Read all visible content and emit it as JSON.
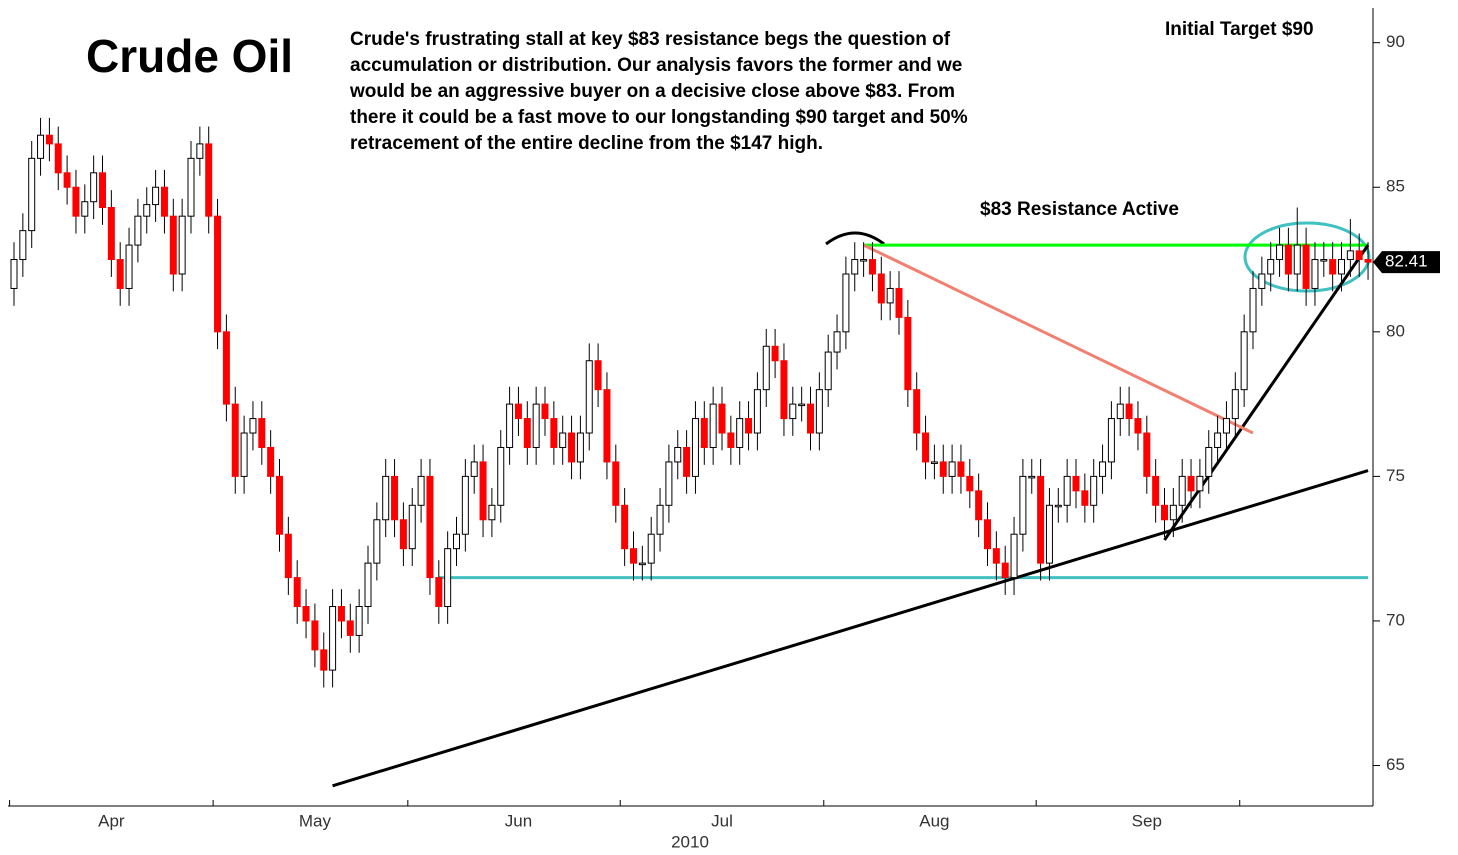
{
  "chart_data": {
    "type": "candlestick",
    "title": "Crude Oil",
    "commentary": [
      "Crude's frustrating stall at key $83 resistance begs the question of",
      "accumulation or distribution. Our analysis favors the former and we",
      "would be an aggressive buyer on a decisive close above $83. From",
      "there it could be a fast move to our longstanding $90 target and 50%",
      "retracement of the entire decline from the $147 high."
    ],
    "annotations": [
      "Initial Target $90",
      "$83 Resistance Active"
    ],
    "year_label": "2010",
    "up_color": "#ffffff",
    "down_color": "#ff0000",
    "ylim": [
      63.6,
      91.2
    ],
    "yticks": [
      65,
      70,
      75,
      80,
      85,
      90
    ],
    "last_value": 82.41,
    "xticks": [
      {
        "value": 11,
        "label": "Apr"
      },
      {
        "value": 34,
        "label": "May"
      },
      {
        "value": 57,
        "label": "Jun"
      },
      {
        "value": 80,
        "label": "Jul"
      },
      {
        "value": 104,
        "label": "Aug"
      },
      {
        "value": 128,
        "label": "Sep"
      }
    ],
    "month_boundaries": [
      0,
      23,
      45,
      69,
      92,
      116,
      139
    ],
    "trendlines": [
      {
        "color": "#00ff00",
        "points": [
          [
            96,
            83
          ],
          [
            153,
            83
          ]
        ]
      },
      {
        "color": "#40c0c0",
        "points": [
          [
            48,
            71.5
          ],
          [
            153,
            71.5
          ]
        ]
      },
      {
        "color": "#000000",
        "points": [
          [
            36,
            64.3
          ],
          [
            153,
            75.2
          ]
        ]
      },
      {
        "color": "#000000",
        "points": [
          [
            130,
            72.8
          ],
          [
            153,
            83
          ]
        ]
      },
      {
        "color": "#f08070",
        "points": [
          [
            96,
            83
          ],
          [
            140,
            76.5
          ]
        ]
      }
    ],
    "ohlc": [
      [
        81.5,
        83.1,
        80.9,
        82.5
      ],
      [
        82.5,
        84.1,
        81.9,
        83.5
      ],
      [
        83.5,
        86.6,
        82.9,
        86
      ],
      [
        86,
        87.4,
        85.4,
        86.8
      ],
      [
        86.8,
        87.4,
        85.9,
        86.5
      ],
      [
        86.5,
        87.1,
        84.9,
        85.5
      ],
      [
        85.5,
        86.1,
        84.4,
        85
      ],
      [
        85,
        85.6,
        83.4,
        84
      ],
      [
        84,
        85.1,
        83.4,
        84.5
      ],
      [
        84.5,
        86.1,
        83.9,
        85.5
      ],
      [
        85.5,
        86.1,
        83.7,
        84.3
      ],
      [
        84.3,
        84.9,
        81.9,
        82.5
      ],
      [
        82.5,
        83.1,
        80.9,
        81.5
      ],
      [
        81.5,
        83.6,
        80.9,
        83
      ],
      [
        83,
        84.6,
        82.4,
        84
      ],
      [
        84,
        85,
        83.4,
        84.4
      ],
      [
        84.4,
        85.6,
        83.8,
        85
      ],
      [
        85,
        85.6,
        83.4,
        84
      ],
      [
        84,
        84.6,
        81.4,
        82
      ],
      [
        82,
        84.6,
        81.4,
        84
      ],
      [
        84,
        86.6,
        83.4,
        86
      ],
      [
        86,
        87.1,
        85.4,
        86.5
      ],
      [
        86.5,
        87.1,
        83.4,
        84
      ],
      [
        84,
        84.6,
        79.4,
        80
      ],
      [
        80,
        80.6,
        76.9,
        77.5
      ],
      [
        77.5,
        78.1,
        74.4,
        75
      ],
      [
        75,
        77.1,
        74.4,
        76.5
      ],
      [
        76.5,
        77.6,
        75.9,
        77
      ],
      [
        77,
        77.6,
        75.4,
        76
      ],
      [
        76,
        76.6,
        74.4,
        75
      ],
      [
        75,
        75.6,
        72.4,
        73
      ],
      [
        73,
        73.6,
        70.9,
        71.5
      ],
      [
        71.5,
        72.1,
        69.9,
        70.5
      ],
      [
        70.5,
        71.1,
        69.4,
        70
      ],
      [
        70,
        70.6,
        68.4,
        69
      ],
      [
        69,
        69.6,
        67.7,
        68.3
      ],
      [
        68.3,
        71.1,
        67.7,
        70.5
      ],
      [
        70.5,
        71.1,
        69.4,
        70
      ],
      [
        70,
        70.6,
        68.9,
        69.5
      ],
      [
        69.5,
        71.1,
        68.9,
        70.5
      ],
      [
        70.5,
        72.6,
        69.9,
        72
      ],
      [
        72,
        74.1,
        71.4,
        73.5
      ],
      [
        73.5,
        75.6,
        72.9,
        75
      ],
      [
        75,
        75.6,
        72.9,
        73.5
      ],
      [
        73.5,
        74.1,
        71.9,
        72.5
      ],
      [
        72.5,
        74.6,
        71.9,
        74
      ],
      [
        74,
        75.6,
        73.4,
        75
      ],
      [
        75,
        75.6,
        70.9,
        71.5
      ],
      [
        71.5,
        72.1,
        69.9,
        70.5
      ],
      [
        70.5,
        73.1,
        69.9,
        72.5
      ],
      [
        72.5,
        73.6,
        71.9,
        73
      ],
      [
        73,
        75.6,
        72.4,
        75
      ],
      [
        75,
        76.1,
        74.4,
        75.5
      ],
      [
        75.5,
        76.1,
        72.9,
        73.5
      ],
      [
        73.5,
        74.6,
        72.9,
        74
      ],
      [
        74,
        76.6,
        73.4,
        76
      ],
      [
        76,
        78.1,
        75.4,
        77.5
      ],
      [
        77.5,
        78.1,
        76.4,
        77
      ],
      [
        77,
        77.6,
        75.4,
        76
      ],
      [
        76,
        78.1,
        75.4,
        77.5
      ],
      [
        77.5,
        78.1,
        76.4,
        77
      ],
      [
        77,
        77.6,
        75.4,
        76
      ],
      [
        76,
        77.1,
        75.4,
        76.5
      ],
      [
        76.5,
        77.1,
        74.9,
        75.5
      ],
      [
        75.5,
        77.1,
        74.9,
        76.5
      ],
      [
        76.5,
        79.6,
        75.9,
        79
      ],
      [
        79,
        79.6,
        77.4,
        78
      ],
      [
        78,
        78.6,
        74.9,
        75.5
      ],
      [
        75.5,
        76.1,
        73.4,
        74
      ],
      [
        74,
        74.6,
        71.9,
        72.5
      ],
      [
        72.5,
        73.1,
        71.4,
        72
      ],
      [
        72,
        72.6,
        71.4,
        72
      ],
      [
        72,
        73.6,
        71.4,
        73
      ],
      [
        73,
        74.6,
        72.4,
        74
      ],
      [
        74,
        76.1,
        73.4,
        75.5
      ],
      [
        75.5,
        76.6,
        74.9,
        76
      ],
      [
        76,
        76.6,
        74.4,
        75
      ],
      [
        75,
        77.6,
        74.4,
        77
      ],
      [
        77,
        77.6,
        75.4,
        76
      ],
      [
        76,
        78.1,
        75.4,
        77.5
      ],
      [
        77.5,
        78.1,
        75.9,
        76.5
      ],
      [
        76.5,
        77.1,
        75.4,
        76
      ],
      [
        76,
        77.6,
        75.4,
        77
      ],
      [
        77,
        77.6,
        75.9,
        76.5
      ],
      [
        76.5,
        78.6,
        75.9,
        78
      ],
      [
        78,
        80.1,
        77.4,
        79.5
      ],
      [
        79.5,
        80.1,
        78.4,
        79
      ],
      [
        79,
        79.6,
        76.4,
        77
      ],
      [
        77,
        78.1,
        76.4,
        77.5
      ],
      [
        77.5,
        78.1,
        76.9,
        77.5
      ],
      [
        77.5,
        78.1,
        75.9,
        76.5
      ],
      [
        76.5,
        78.6,
        75.9,
        78
      ],
      [
        78,
        79.9,
        77.4,
        79.3
      ],
      [
        79.3,
        80.6,
        78.7,
        80
      ],
      [
        80,
        82.6,
        79.4,
        82
      ],
      [
        82,
        83.1,
        81.4,
        82.5
      ],
      [
        82.5,
        83.1,
        81.9,
        82.5
      ],
      [
        82.5,
        83.1,
        81.4,
        82
      ],
      [
        82,
        82.6,
        80.4,
        81
      ],
      [
        81,
        82.1,
        80.4,
        81.5
      ],
      [
        81.5,
        82.1,
        79.9,
        80.5
      ],
      [
        80.5,
        81.1,
        77.4,
        78
      ],
      [
        78,
        78.6,
        75.9,
        76.5
      ],
      [
        76.5,
        77.1,
        74.9,
        75.5
      ],
      [
        75.5,
        76.1,
        74.9,
        75.5
      ],
      [
        75.5,
        76.1,
        74.4,
        75
      ],
      [
        75,
        76.1,
        74.4,
        75.5
      ],
      [
        75.5,
        76.1,
        74.4,
        75
      ],
      [
        75,
        75.6,
        73.9,
        74.5
      ],
      [
        74.5,
        75.1,
        72.9,
        73.5
      ],
      [
        73.5,
        74.1,
        71.9,
        72.5
      ],
      [
        72.5,
        73.1,
        71.4,
        72
      ],
      [
        72,
        72.6,
        70.9,
        71.5
      ],
      [
        71.5,
        73.6,
        70.9,
        73
      ],
      [
        73,
        75.6,
        72.4,
        75
      ],
      [
        75,
        75.6,
        74.4,
        75
      ],
      [
        75,
        75.6,
        71.4,
        72
      ],
      [
        72,
        74.6,
        71.4,
        74
      ],
      [
        74,
        74.6,
        73.4,
        74
      ],
      [
        74,
        75.6,
        73.4,
        75
      ],
      [
        75,
        75.6,
        73.9,
        74.5
      ],
      [
        74.5,
        75.1,
        73.4,
        74
      ],
      [
        74,
        75.6,
        73.4,
        75
      ],
      [
        75,
        76.1,
        74.4,
        75.5
      ],
      [
        75.5,
        77.6,
        74.9,
        77
      ],
      [
        77,
        78.1,
        76.4,
        77.5
      ],
      [
        77.5,
        78.1,
        76.4,
        77
      ],
      [
        77,
        77.6,
        75.9,
        76.5
      ],
      [
        76.5,
        77.1,
        74.4,
        75
      ],
      [
        75,
        75.6,
        73.4,
        74
      ],
      [
        74,
        74.6,
        72.9,
        73.5
      ],
      [
        73.5,
        74.6,
        72.9,
        74
      ],
      [
        74,
        75.6,
        73.4,
        75
      ],
      [
        75,
        75.6,
        73.9,
        74.5
      ],
      [
        74.5,
        75.6,
        73.9,
        75
      ],
      [
        75,
        76.6,
        74.4,
        76
      ],
      [
        76,
        77.1,
        75.4,
        76.5
      ],
      [
        76.5,
        77.6,
        75.9,
        77
      ],
      [
        77,
        78.6,
        76.4,
        78
      ],
      [
        78,
        80.6,
        77.4,
        80
      ],
      [
        80,
        82.1,
        79.4,
        81.5
      ],
      [
        81.5,
        82.6,
        80.9,
        82
      ],
      [
        82,
        83.1,
        81.4,
        82.5
      ],
      [
        82.5,
        83.6,
        81.9,
        83
      ],
      [
        83,
        83.6,
        81.4,
        82
      ],
      [
        82,
        84.3,
        81.4,
        83
      ],
      [
        83,
        83.6,
        80.9,
        81.5
      ],
      [
        81.5,
        83.1,
        80.9,
        82.5
      ],
      [
        82.5,
        83.1,
        81.9,
        82.5
      ],
      [
        82.5,
        83.1,
        81.4,
        82
      ],
      [
        82,
        83.1,
        81.4,
        82.5
      ],
      [
        82.5,
        83.9,
        81.9,
        82.8
      ],
      [
        82.8,
        83.4,
        81.9,
        82.5
      ],
      [
        82.5,
        83.1,
        81.8,
        82.41
      ]
    ]
  }
}
